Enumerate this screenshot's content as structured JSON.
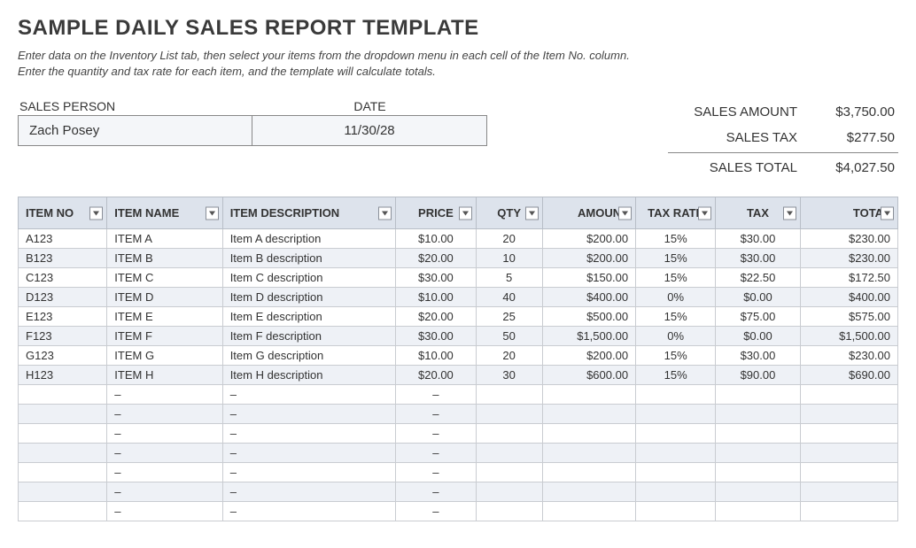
{
  "title": "SAMPLE DAILY SALES REPORT TEMPLATE",
  "instructions": {
    "line1": "Enter data on the Inventory List tab, then select your items from the dropdown menu in each cell of the Item No. column.",
    "line2": "Enter the quantity and tax rate for each item, and the template will calculate totals."
  },
  "fields": {
    "sales_person_label": "SALES PERSON",
    "date_label": "DATE",
    "sales_person_value": "Zach Posey",
    "date_value": "11/30/28"
  },
  "totals": {
    "sales_amount_label": "SALES AMOUNT",
    "sales_amount_value": "$3,750.00",
    "sales_tax_label": "SALES TAX",
    "sales_tax_value": "$277.50",
    "sales_total_label": "SALES TOTAL",
    "sales_total_value": "$4,027.50"
  },
  "table": {
    "headers": {
      "item_no": "ITEM NO",
      "item_name": "ITEM NAME",
      "item_desc": "ITEM DESCRIPTION",
      "price": "PRICE",
      "qty": "QTY",
      "amount": "AMOUNT",
      "tax_rate": "TAX RATE",
      "tax": "TAX",
      "total": "TOTAL"
    },
    "rows": [
      {
        "item_no": "A123",
        "item_name": "ITEM A",
        "item_desc": "Item A description",
        "price": "$10.00",
        "qty": "20",
        "amount": "$200.00",
        "tax_rate": "15%",
        "tax": "$30.00",
        "total": "$230.00"
      },
      {
        "item_no": "B123",
        "item_name": "ITEM B",
        "item_desc": "Item B description",
        "price": "$20.00",
        "qty": "10",
        "amount": "$200.00",
        "tax_rate": "15%",
        "tax": "$30.00",
        "total": "$230.00"
      },
      {
        "item_no": "C123",
        "item_name": "ITEM C",
        "item_desc": "Item C description",
        "price": "$30.00",
        "qty": "5",
        "amount": "$150.00",
        "tax_rate": "15%",
        "tax": "$22.50",
        "total": "$172.50"
      },
      {
        "item_no": "D123",
        "item_name": "ITEM D",
        "item_desc": "Item D description",
        "price": "$10.00",
        "qty": "40",
        "amount": "$400.00",
        "tax_rate": "0%",
        "tax": "$0.00",
        "total": "$400.00"
      },
      {
        "item_no": "E123",
        "item_name": "ITEM E",
        "item_desc": "Item E description",
        "price": "$20.00",
        "qty": "25",
        "amount": "$500.00",
        "tax_rate": "15%",
        "tax": "$75.00",
        "total": "$575.00"
      },
      {
        "item_no": "F123",
        "item_name": "ITEM F",
        "item_desc": "Item F description",
        "price": "$30.00",
        "qty": "50",
        "amount": "$1,500.00",
        "tax_rate": "0%",
        "tax": "$0.00",
        "total": "$1,500.00"
      },
      {
        "item_no": "G123",
        "item_name": "ITEM G",
        "item_desc": "Item G description",
        "price": "$10.00",
        "qty": "20",
        "amount": "$200.00",
        "tax_rate": "15%",
        "tax": "$30.00",
        "total": "$230.00"
      },
      {
        "item_no": "H123",
        "item_name": "ITEM H",
        "item_desc": "Item H description",
        "price": "$20.00",
        "qty": "30",
        "amount": "$600.00",
        "tax_rate": "15%",
        "tax": "$90.00",
        "total": "$690.00"
      }
    ],
    "empty_row_count": 7,
    "empty_dash": "–"
  },
  "colors": {
    "header_bg": "#dde3ec",
    "row_alt_bg": "#eef1f6",
    "border": "#c9ccd1"
  }
}
